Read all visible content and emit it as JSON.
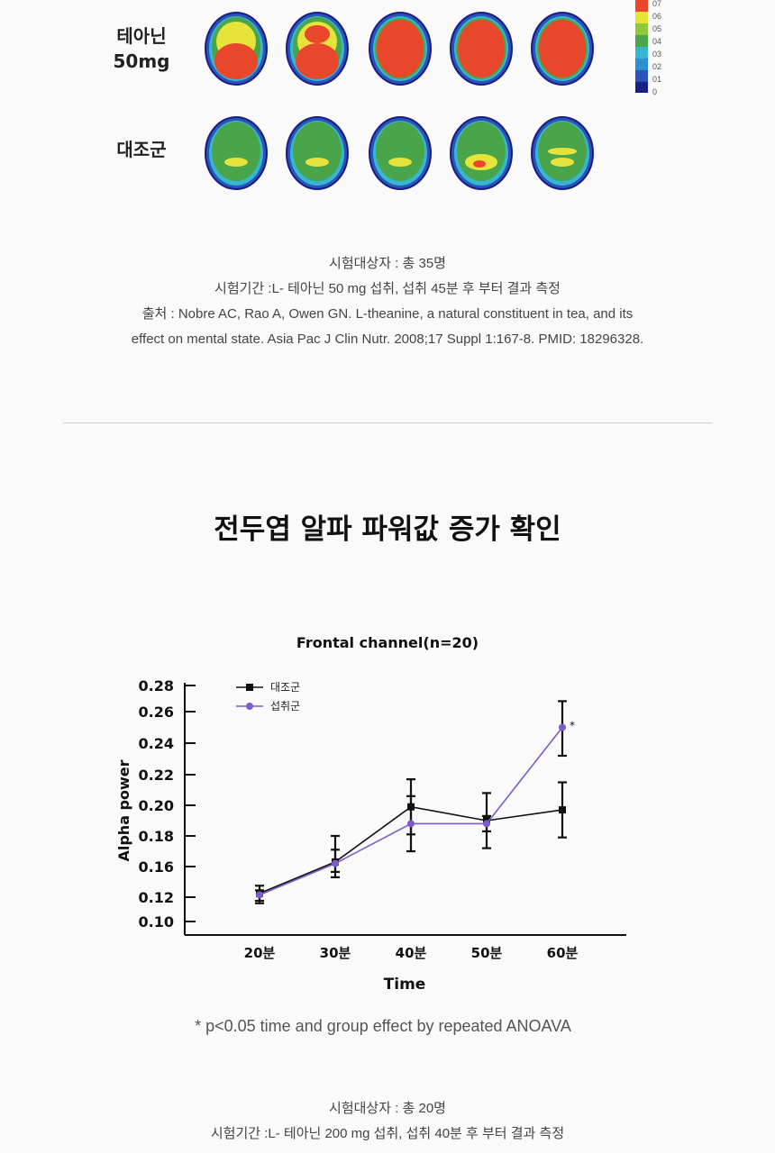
{
  "brain_maps": {
    "rows": [
      {
        "label_line1": "테아닌",
        "label_line2": "50mg",
        "kind": "theanine"
      },
      {
        "label_line1": "대조군",
        "label_line2": "",
        "kind": "control"
      }
    ],
    "scale_ticks": [
      "07",
      "06",
      "05",
      "04",
      "03",
      "02",
      "01",
      "0"
    ],
    "colors": {
      "red": "#e8472b",
      "yellow": "#e6e43a",
      "green": "#4aa54a",
      "cyan": "#35b7d2",
      "blue": "#2c54b8",
      "navy": "#1a1f86"
    }
  },
  "caption1": {
    "line1": "시험대상자 : 총 35명",
    "line2": "시험기간 :L- 테아닌 50 mg 섭취, 섭취 45분 후 부터 결과 측정",
    "line3": "출처 : Nobre AC, Rao A, Owen GN. L-theanine, a natural constituent in tea, and its",
    "line4": "effect on mental state. Asia Pac J Clin Nutr. 2008;17 Suppl 1:167-8. PMID: 18296328."
  },
  "section": {
    "title": "전두엽 알파 파워값 증가 확인"
  },
  "chart_data": {
    "type": "line",
    "title": "Frontal channel(n=20)",
    "xlabel": "Time",
    "ylabel": "Alpha power",
    "categories": [
      "20분",
      "30분",
      "40분",
      "50분",
      "60분"
    ],
    "y_ticks": [
      "0.10",
      "0.12",
      "0.16",
      "0.18",
      "0.20",
      "0.22",
      "0.24",
      "0.26",
      "0.28"
    ],
    "series": [
      {
        "name": "대조군",
        "color": "#111111",
        "values": [
          0.125,
          0.163,
          0.199,
          0.19,
          0.197
        ],
        "err": [
          0.01,
          0.017,
          0.018,
          0.018,
          0.018
        ]
      },
      {
        "name": "섭취군",
        "color": "#7b5cc9",
        "values": [
          0.123,
          0.162,
          0.188,
          0.188,
          0.25
        ],
        "err": [
          0.006,
          0.009,
          0.018,
          0.005,
          0.018
        ]
      }
    ],
    "significance_marker": "*",
    "legend": "top-left",
    "footnote": "* p<0.05 time and group effect by repeated ANOAVA"
  },
  "caption2": {
    "line1": "시험대상자 : 총 20명",
    "line2": "시험기간 :L- 테아닌 200 mg 섭취, 섭취 40분 후 부터 결과 측정"
  }
}
